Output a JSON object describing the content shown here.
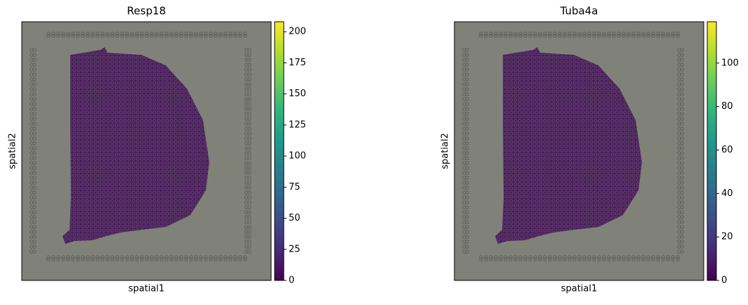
{
  "chart_data": [
    {
      "type": "spatial",
      "title": "Resp18",
      "xlabel": "spatial1",
      "ylabel": "spatial2",
      "colormap": "viridis",
      "clim": [
        0,
        208
      ],
      "cticks": [
        0,
        25,
        50,
        75,
        100,
        125,
        150,
        175,
        200
      ]
    },
    {
      "type": "spatial",
      "title": "Tuba4a",
      "xlabel": "spatial1",
      "ylabel": "spatial2",
      "colormap": "viridis",
      "clim": [
        0,
        119
      ],
      "cticks": [
        0,
        20,
        40,
        60,
        80,
        100
      ]
    }
  ]
}
